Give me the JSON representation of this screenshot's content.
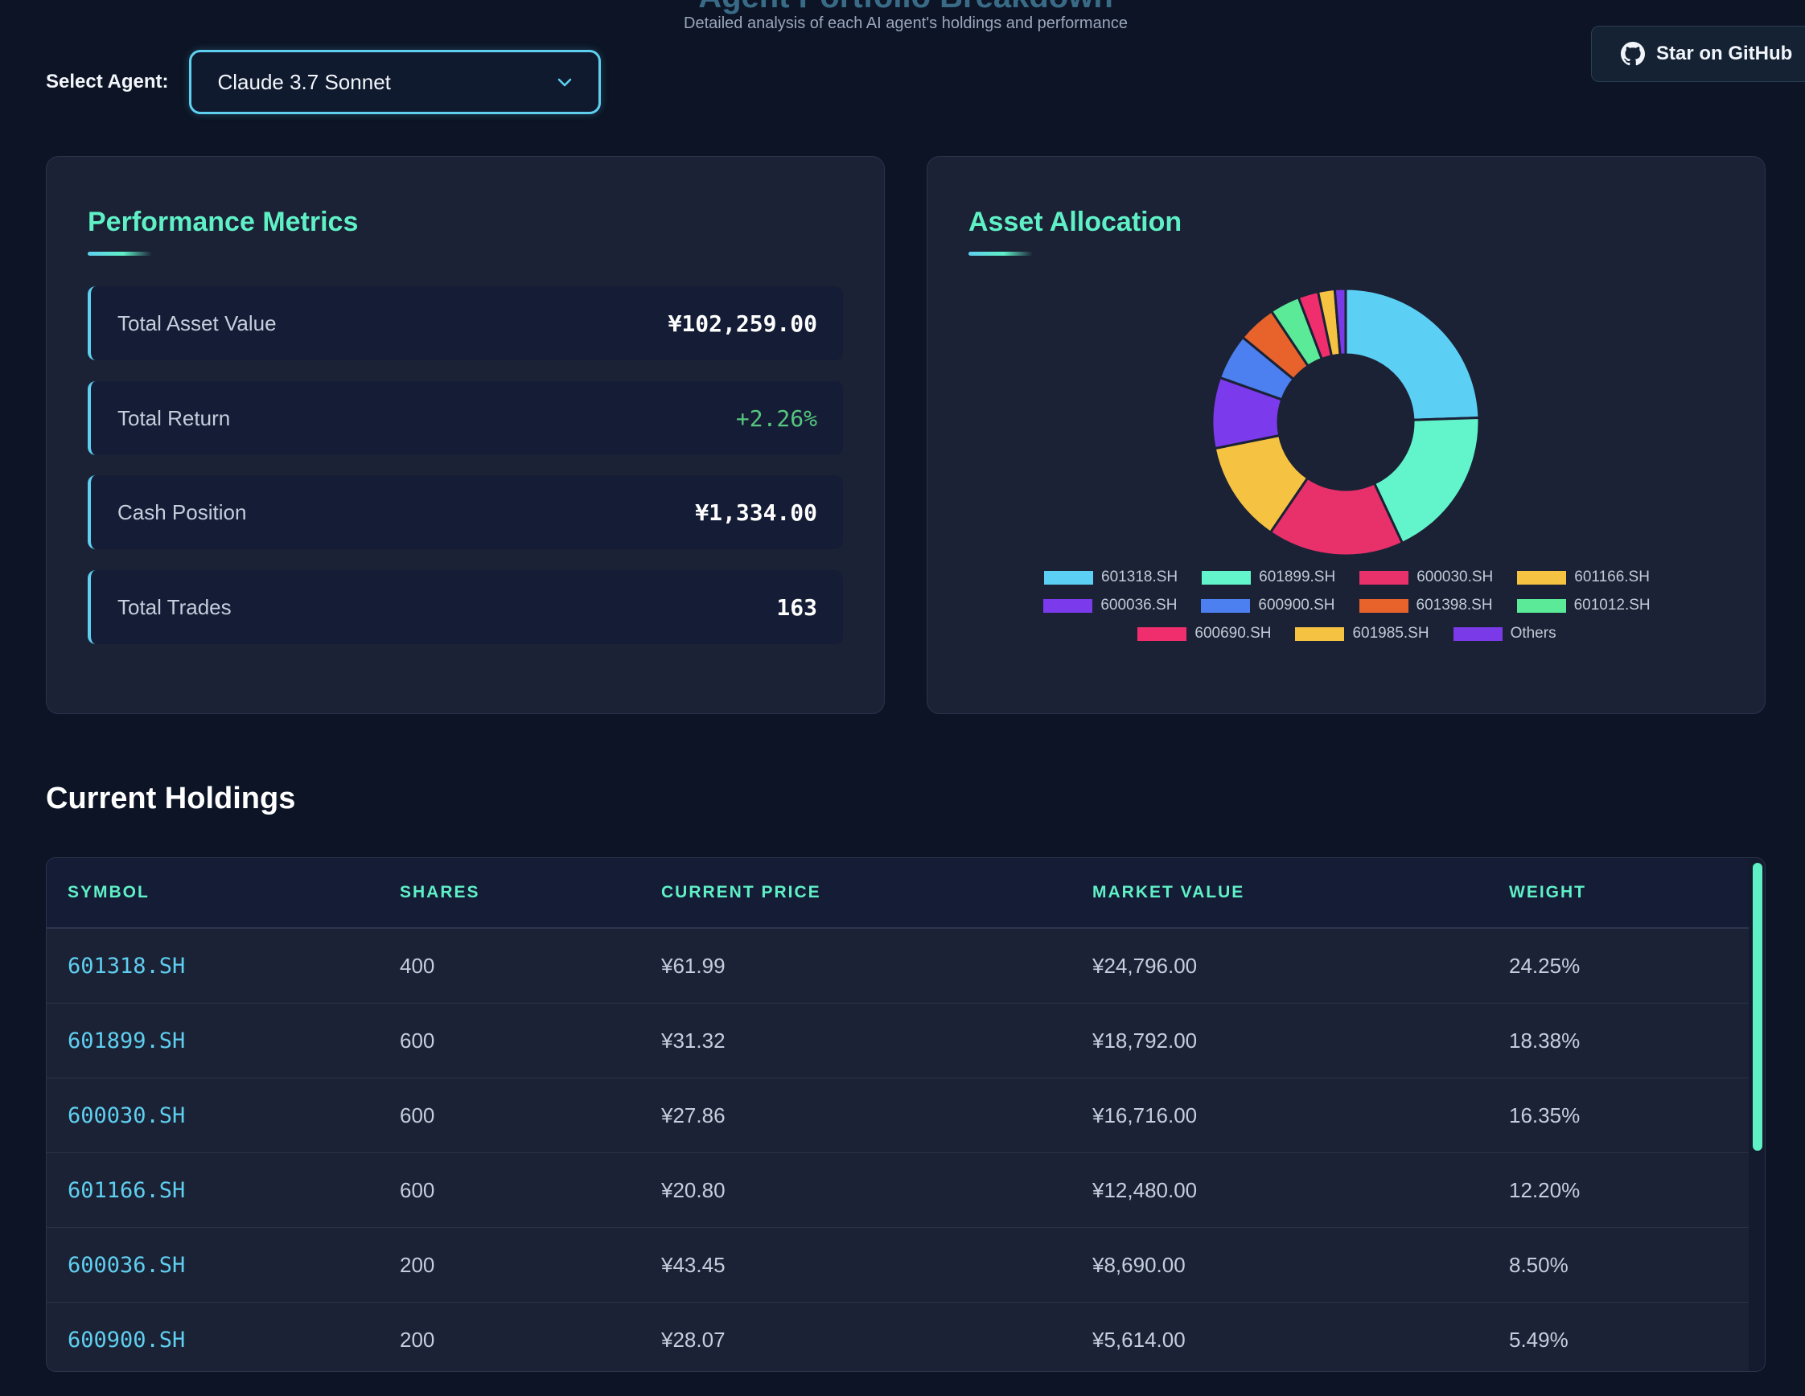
{
  "header": {
    "title": "Agent Portfolio Breakdown",
    "subtitle": "Detailed analysis of each AI agent's holdings and performance",
    "github_label": "Star on GitHub"
  },
  "agent_select": {
    "label": "Select Agent:",
    "value": "Claude 3.7 Sonnet"
  },
  "metrics": {
    "title": "Performance Metrics",
    "items": [
      {
        "label": "Total Asset Value",
        "value": "¥102,259.00"
      },
      {
        "label": "Total Return",
        "value": "+2.26%"
      },
      {
        "label": "Cash Position",
        "value": "¥1,334.00"
      },
      {
        "label": "Total Trades",
        "value": "163"
      }
    ]
  },
  "allocation": {
    "title": "Asset Allocation"
  },
  "chart_data": {
    "type": "pie",
    "donut": true,
    "legend_position": "bottom",
    "categories": [
      "601318.SH",
      "601899.SH",
      "600030.SH",
      "601166.SH",
      "600036.SH",
      "600900.SH",
      "601398.SH",
      "601012.SH",
      "600690.SH",
      "601985.SH",
      "Others"
    ],
    "values": [
      24.25,
      18.38,
      16.35,
      12.2,
      8.5,
      5.49,
      4.6,
      3.6,
      2.4,
      2.0,
      1.3
    ],
    "colors": [
      "#5ccff5",
      "#62f5cc",
      "#e8306b",
      "#f5c242",
      "#7c3aed",
      "#4c7ff0",
      "#e8632c",
      "#5bea98",
      "#f02e6e",
      "#f6c242",
      "#7a3ae8"
    ]
  },
  "holdings": {
    "title": "Current Holdings",
    "columns": [
      "SYMBOL",
      "SHARES",
      "CURRENT PRICE",
      "MARKET VALUE",
      "WEIGHT"
    ],
    "rows": [
      {
        "symbol": "601318.SH",
        "shares": "400",
        "price": "¥61.99",
        "value": "¥24,796.00",
        "weight": "24.25%"
      },
      {
        "symbol": "601899.SH",
        "shares": "600",
        "price": "¥31.32",
        "value": "¥18,792.00",
        "weight": "18.38%"
      },
      {
        "symbol": "600030.SH",
        "shares": "600",
        "price": "¥27.86",
        "value": "¥16,716.00",
        "weight": "16.35%"
      },
      {
        "symbol": "601166.SH",
        "shares": "600",
        "price": "¥20.80",
        "value": "¥12,480.00",
        "weight": "12.20%"
      },
      {
        "symbol": "600036.SH",
        "shares": "200",
        "price": "¥43.45",
        "value": "¥8,690.00",
        "weight": "8.50%"
      },
      {
        "symbol": "600900.SH",
        "shares": "200",
        "price": "¥28.07",
        "value": "¥5,614.00",
        "weight": "5.49%"
      }
    ]
  }
}
